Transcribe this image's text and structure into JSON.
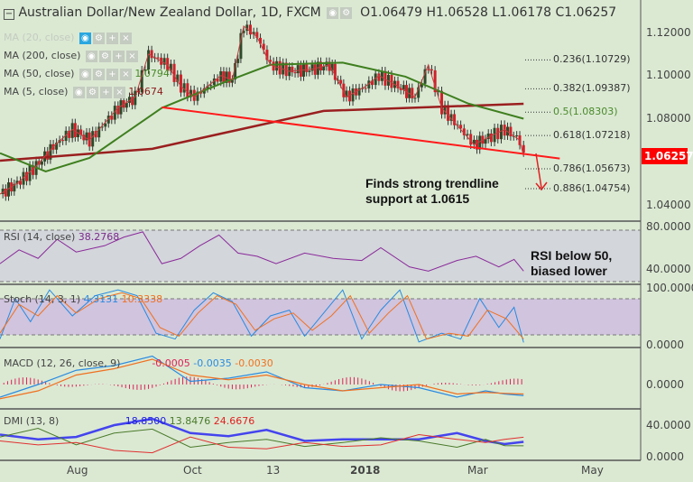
{
  "header": {
    "title": "Australian Dollar/New Zealand Dollar, 1D, FXCM",
    "open": "O1.06479",
    "high": "H1.06528",
    "low": "L1.06178",
    "close": "C1.06257"
  },
  "legends": {
    "ma20": "MA (20, close)",
    "ma200": "MA (200, close)",
    "ma50": "MA (50, close)",
    "ma5": "MA (5, close)",
    "ma5_val": "1.0674",
    "ma50_val": "1.0794",
    "rsi": "RSI (14, close)",
    "rsi_val": "38.2768",
    "stoch": "Stoch (14, 3, 1)",
    "stoch_k": "4.3131",
    "stoch_d": "10.3338",
    "macd": "MACD (12, 26, close, 9)",
    "macd_hist": "-0.0005",
    "macd_line": "-0.0035",
    "macd_signal": "-0.0030",
    "dmi": "DMI (13, 8)",
    "dmi_adx": "18.8500",
    "dmi_plus": "13.8476",
    "dmi_minus": "24.6676"
  },
  "price_axis": [
    "1.12000",
    "1.10000",
    "1.08000",
    "1.04000"
  ],
  "last_price": "1.06257",
  "fib": [
    {
      "label": "0.236(1.10729)",
      "v": 1.10729,
      "color": "#333"
    },
    {
      "label": "0.382(1.09387)",
      "v": 1.09387,
      "color": "#333"
    },
    {
      "label": "0.5(1.08303)",
      "v": 1.08303,
      "color": "#4a8a2a"
    },
    {
      "label": "0.618(1.07218)",
      "v": 1.07218,
      "color": "#333"
    },
    {
      "label": "0.786(1.05673)",
      "v": 1.05673,
      "color": "#333"
    },
    {
      "label": "0.886(1.04754)",
      "v": 1.04754,
      "color": "#333"
    }
  ],
  "notes": {
    "trend1": "Finds strong trendline",
    "trend2": "support at 1.0615",
    "rsi1": "RSI below 50,",
    "rsi2": "biased lower"
  },
  "rsi_axis": [
    "80.0000",
    "40.0000"
  ],
  "stoch_axis": [
    "100.0000",
    "0.0000"
  ],
  "macd_axis": [
    "0.0000"
  ],
  "dmi_axis": [
    "40.0000",
    "0.0000"
  ],
  "x_axis": [
    "Aug",
    "Oct",
    "13",
    "2018",
    "Mar",
    "May"
  ],
  "chart_data": {
    "type": "line",
    "title": "Australian Dollar/New Zealand Dollar, 1D, FXCM",
    "x_unit": "trading-day index",
    "price": {
      "x": [
        0,
        9,
        19,
        28,
        38,
        47,
        62,
        71,
        78,
        88,
        95,
        102,
        109,
        116,
        122,
        128,
        135,
        142,
        152,
        164,
        173,
        182,
        192,
        199,
        209,
        218,
        225,
        232,
        242,
        249,
        258,
        265,
        273,
        275
      ],
      "close": [
        1.045,
        1.05,
        1.058,
        1.067,
        1.075,
        1.07,
        1.085,
        1.09,
        1.11,
        1.105,
        1.095,
        1.09,
        1.095,
        1.1,
        1.098,
        1.123,
        1.118,
        1.105,
        1.102,
        1.103,
        1.105,
        1.09,
        1.095,
        1.1,
        1.095,
        1.09,
        1.105,
        1.085,
        1.075,
        1.068,
        1.072,
        1.075,
        1.07,
        1.0626
      ]
    },
    "ma200": {
      "x": [
        0,
        80,
        170,
        275
      ],
      "y": [
        1.0605,
        1.066,
        1.0836,
        1.0869
      ]
    },
    "ma50": {
      "x": [
        0,
        24,
        47,
        85,
        118,
        142,
        180,
        213,
        246,
        275
      ],
      "y": [
        1.064,
        1.0555,
        1.0618,
        1.085,
        1.097,
        1.105,
        1.106,
        1.0995,
        1.087,
        1.08
      ]
    },
    "trendline": {
      "x": [
        85,
        294
      ],
      "y": [
        1.0853,
        1.0615
      ]
    },
    "rsi": {
      "x": [
        0,
        10,
        20,
        30,
        40,
        55,
        65,
        75,
        85,
        95,
        105,
        115,
        125,
        135,
        145,
        160,
        175,
        190,
        200,
        215,
        225,
        240,
        250,
        262,
        270,
        275
      ],
      "y": [
        45,
        58,
        50,
        68,
        56,
        62,
        70,
        75,
        45,
        50,
        62,
        72,
        55,
        52,
        45,
        55,
        50,
        48,
        60,
        42,
        38,
        48,
        52,
        42,
        49,
        38
      ],
      "ylim": [
        25,
        85
      ]
    },
    "stoch_k": {
      "x": [
        0,
        8,
        16,
        26,
        38,
        50,
        62,
        72,
        82,
        92,
        102,
        112,
        122,
        132,
        142,
        152,
        160,
        170,
        180,
        190,
        200,
        210,
        220,
        232,
        242,
        252,
        262,
        270,
        275
      ],
      "y": [
        10,
        80,
        40,
        95,
        50,
        85,
        95,
        85,
        20,
        10,
        60,
        90,
        75,
        15,
        50,
        60,
        15,
        55,
        95,
        10,
        60,
        95,
        5,
        20,
        10,
        80,
        30,
        65,
        4
      ]
    },
    "stoch_d": {
      "x": [
        0,
        10,
        20,
        30,
        40,
        52,
        64,
        74,
        84,
        94,
        104,
        114,
        124,
        134,
        144,
        154,
        164,
        174,
        184,
        194,
        204,
        214,
        224,
        236,
        246,
        256,
        266,
        275
      ],
      "y": [
        20,
        70,
        50,
        85,
        55,
        80,
        90,
        80,
        30,
        15,
        55,
        85,
        70,
        25,
        45,
        55,
        25,
        50,
        85,
        20,
        55,
        85,
        10,
        20,
        15,
        60,
        45,
        10
      ]
    },
    "macd": {
      "x": [
        0,
        20,
        40,
        60,
        80,
        100,
        120,
        140,
        160,
        180,
        200,
        220,
        240,
        255,
        265,
        275
      ],
      "y": [
        -0.004,
        0.0,
        0.0045,
        0.006,
        0.009,
        0.001,
        0.002,
        0.004,
        -0.001,
        -0.002,
        0.0,
        -0.001,
        -0.004,
        -0.002,
        -0.003,
        -0.0035
      ]
    },
    "macd_signal": {
      "x": [
        0,
        20,
        40,
        60,
        80,
        100,
        120,
        140,
        160,
        180,
        200,
        220,
        240,
        255,
        265,
        275
      ],
      "y": [
        -0.0045,
        -0.002,
        0.003,
        0.005,
        0.008,
        0.003,
        0.0015,
        0.003,
        0.0,
        -0.002,
        -0.001,
        0.0,
        -0.003,
        -0.0025,
        -0.0028,
        -0.003
      ]
    },
    "dmi_adx": {
      "x": [
        0,
        20,
        40,
        60,
        80,
        100,
        120,
        140,
        160,
        180,
        200,
        220,
        240,
        255,
        265,
        275
      ],
      "y": [
        28,
        22,
        25,
        40,
        48,
        30,
        26,
        34,
        20,
        22,
        22,
        22,
        30,
        20,
        16,
        18.85
      ]
    },
    "dmi_plus": {
      "x": [
        0,
        20,
        40,
        60,
        80,
        100,
        120,
        140,
        160,
        180,
        200,
        220,
        240,
        255,
        265,
        275
      ],
      "y": [
        25,
        36,
        15,
        30,
        35,
        12,
        18,
        22,
        13,
        18,
        24,
        20,
        12,
        22,
        14,
        13.85
      ]
    },
    "dmi_minus": {
      "x": [
        0,
        20,
        40,
        60,
        80,
        100,
        120,
        140,
        160,
        180,
        200,
        220,
        240,
        255,
        265,
        275
      ],
      "y": [
        20,
        15,
        18,
        8,
        5,
        25,
        12,
        10,
        18,
        13,
        15,
        28,
        22,
        18,
        22,
        24.67
      ]
    }
  }
}
